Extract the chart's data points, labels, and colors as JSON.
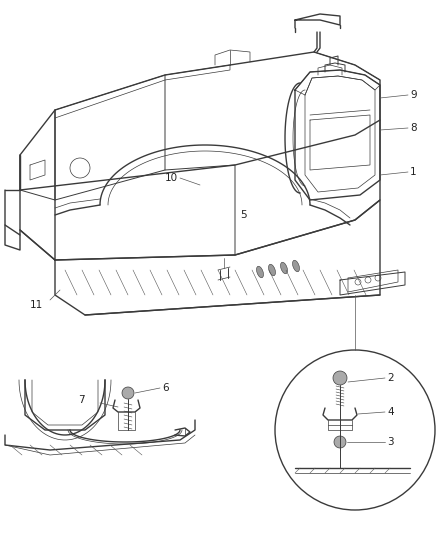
{
  "bg_color": "#ffffff",
  "line_color": "#3a3a3a",
  "label_color": "#222222",
  "thin_line_color": "#555555",
  "fig_width": 4.38,
  "fig_height": 5.33,
  "dpi": 100,
  "label_fontsize": 7.5
}
